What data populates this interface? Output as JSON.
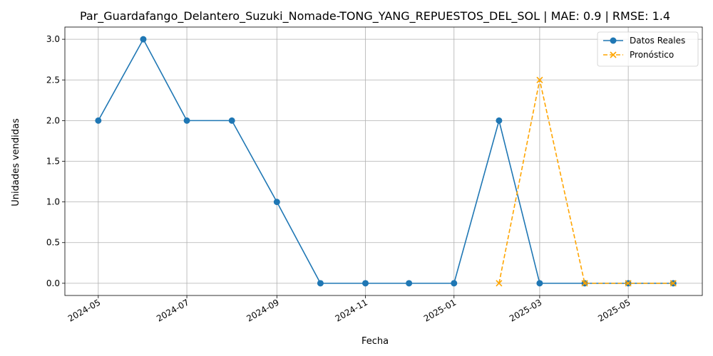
{
  "chart_data": {
    "type": "line",
    "title": "Par_Guardafango_Delantero_Suzuki_Nomade-TONG_YANG_REPUESTOS_DEL_SOL | MAE: 0.9 | RMSE: 1.4",
    "xlabel": "Fecha",
    "ylabel": "Unidades vendidas",
    "ylim": [
      -0.15,
      3.15
    ],
    "xlim": [
      "2024-04-08",
      "2025-06-21"
    ],
    "grid": true,
    "legend_position": "top-right",
    "x_ticks": [
      "2024-05",
      "2024-07",
      "2024-09",
      "2024-11",
      "2025-01",
      "2025-03",
      "2025-05"
    ],
    "x_tick_dates": [
      "2024-05-01",
      "2024-07-01",
      "2024-09-01",
      "2024-11-01",
      "2025-01-01",
      "2025-03-01",
      "2025-05-01"
    ],
    "y_ticks": [
      "0.0",
      "0.5",
      "1.0",
      "1.5",
      "2.0",
      "2.5",
      "3.0"
    ],
    "y_tick_values": [
      0,
      0.5,
      1.0,
      1.5,
      2.0,
      2.5,
      3.0
    ],
    "series": [
      {
        "name": "Datos Reales",
        "color": "#1f77b4",
        "style": "solid",
        "marker": "circle",
        "points": [
          {
            "x": "2024-05-01",
            "y": 2
          },
          {
            "x": "2024-06-01",
            "y": 3
          },
          {
            "x": "2024-07-01",
            "y": 2
          },
          {
            "x": "2024-08-01",
            "y": 2
          },
          {
            "x": "2024-09-01",
            "y": 1
          },
          {
            "x": "2024-10-01",
            "y": 0
          },
          {
            "x": "2024-11-01",
            "y": 0
          },
          {
            "x": "2024-12-01",
            "y": 0
          },
          {
            "x": "2025-01-01",
            "y": 0
          },
          {
            "x": "2025-02-01",
            "y": 2
          },
          {
            "x": "2025-03-01",
            "y": 0
          },
          {
            "x": "2025-04-01",
            "y": 0
          },
          {
            "x": "2025-05-01",
            "y": 0
          },
          {
            "x": "2025-06-01",
            "y": 0
          }
        ]
      },
      {
        "name": "Pronóstico",
        "color": "#ffa500",
        "style": "dashed",
        "marker": "x",
        "points": [
          {
            "x": "2025-02-01",
            "y": 0
          },
          {
            "x": "2025-03-01",
            "y": 2.5
          },
          {
            "x": "2025-04-01",
            "y": 0
          },
          {
            "x": "2025-05-01",
            "y": 0
          },
          {
            "x": "2025-06-01",
            "y": 0
          }
        ]
      }
    ]
  }
}
